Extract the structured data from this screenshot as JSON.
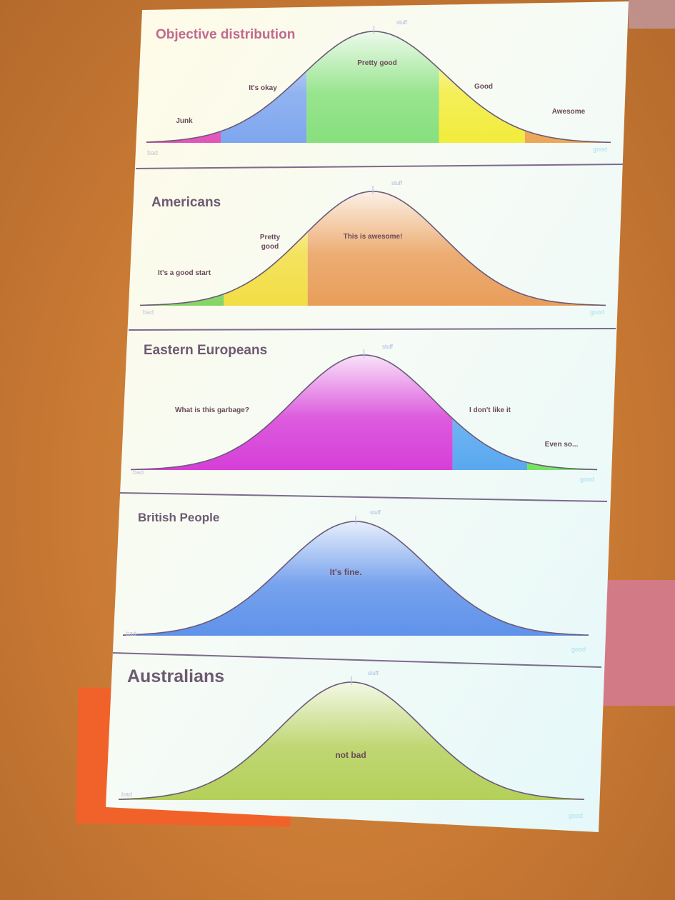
{
  "chart_data": [
    {
      "type": "area",
      "title": "Objective distribution",
      "peak_label": "stuff",
      "x_start_label": "bad",
      "x_end_label": "good",
      "segments": [
        {
          "label": "Junk",
          "color": "#e255b8"
        },
        {
          "label": "It's okay",
          "color": "#7ea6ee"
        },
        {
          "label": "Pretty good",
          "color": "#86e07c"
        },
        {
          "label": "Good",
          "color": "#f2ec3c"
        },
        {
          "label": "Awesome",
          "color": "#eea656"
        }
      ]
    },
    {
      "type": "area",
      "title": "Americans",
      "peak_label": "stuff",
      "x_start_label": "bad",
      "x_end_label": "good",
      "segments": [
        {
          "label": "It's a good start",
          "color": "#86d466"
        },
        {
          "label": "Pretty good",
          "color": "#f2de44"
        },
        {
          "label": "This is awesome!",
          "color": "#e99e5a"
        }
      ]
    },
    {
      "type": "area",
      "title": "Eastern Europeans",
      "peak_label": "stuff",
      "x_start_label": "bad",
      "x_end_label": "good",
      "segments": [
        {
          "label": "What is this garbage?",
          "color": "#d63ed8"
        },
        {
          "label": "I don't like it",
          "color": "#58a8f0"
        },
        {
          "label": "Even so...",
          "color": "#74e464"
        }
      ]
    },
    {
      "type": "area",
      "title": "British People",
      "peak_label": "stuff",
      "x_start_label": "bad",
      "x_end_label": "good",
      "segments": [
        {
          "label": "It's fine.",
          "color": "#5f92ea"
        }
      ]
    },
    {
      "type": "area",
      "title": "Australians",
      "peak_label": "stuff",
      "x_start_label": "bad",
      "x_end_label": "good",
      "segments": [
        {
          "label": "not bad",
          "color": "#b4d05a"
        }
      ]
    }
  ]
}
